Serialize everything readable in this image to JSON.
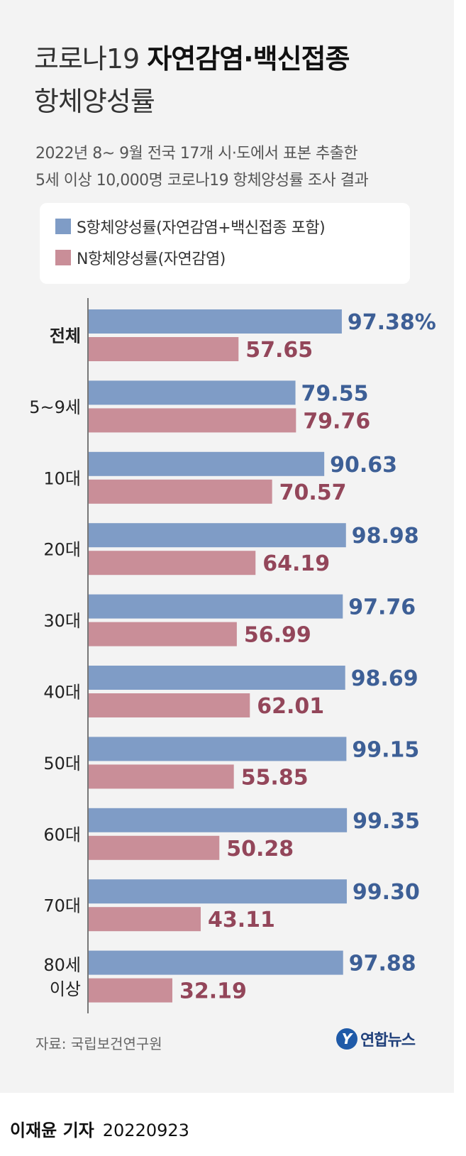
{
  "title": {
    "line1_light": "코로나19 ",
    "line1_bold": "자연감염·백신접종",
    "line2": "항체양성률"
  },
  "subtitle": {
    "line1": "2022년 8~ 9월 전국 17개 시·도에서 표본 추출한",
    "line2": "5세 이상 10,000명 코로나19 항체양성률 조사 결과"
  },
  "legend": {
    "s_label": "S항체양성률(자연감염+백신접종 포함)",
    "n_label": "N항체양성률(자연감염)"
  },
  "colors": {
    "s_bar": "#7f9cc6",
    "n_bar": "#c98e98",
    "s_text": "#3d5f96",
    "n_text": "#93465a",
    "axis": "#777777"
  },
  "chart_data": {
    "type": "bar",
    "orientation": "horizontal",
    "categories": [
      "전체",
      "5~9세",
      "10대",
      "20대",
      "30대",
      "40대",
      "50대",
      "60대",
      "70대",
      "80세 이상"
    ],
    "category_label_lines": [
      [
        "전체"
      ],
      [
        "5~9세"
      ],
      [
        "10대"
      ],
      [
        "20대"
      ],
      [
        "30대"
      ],
      [
        "40대"
      ],
      [
        "50대"
      ],
      [
        "60대"
      ],
      [
        "70대"
      ],
      [
        "80세",
        "이상"
      ]
    ],
    "bold_category": "전체",
    "series": [
      {
        "name": "S항체양성률(자연감염+백신접종 포함)",
        "values": [
          97.38,
          79.55,
          90.63,
          98.98,
          97.76,
          98.69,
          99.15,
          99.35,
          99.3,
          97.88
        ],
        "labels": [
          "97.38%",
          "79.55",
          "90.63",
          "98.98",
          "97.76",
          "98.69",
          "99.15",
          "99.35",
          "99.30",
          "97.88"
        ]
      },
      {
        "name": "N항체양성률(자연감염)",
        "values": [
          57.65,
          79.76,
          70.57,
          64.19,
          56.99,
          62.01,
          55.85,
          50.28,
          43.11,
          32.19
        ],
        "labels": [
          "57.65",
          "79.76",
          "70.57",
          "64.19",
          "56.99",
          "62.01",
          "55.85",
          "50.28",
          "43.11",
          "32.19"
        ]
      }
    ],
    "xlim": [
      0,
      100
    ]
  },
  "source": "자료: 국립보건연구원",
  "logo": {
    "mark": "Y",
    "text": "연합뉴스"
  },
  "byline": {
    "name": "이재윤 기자",
    "date": "20220923"
  }
}
